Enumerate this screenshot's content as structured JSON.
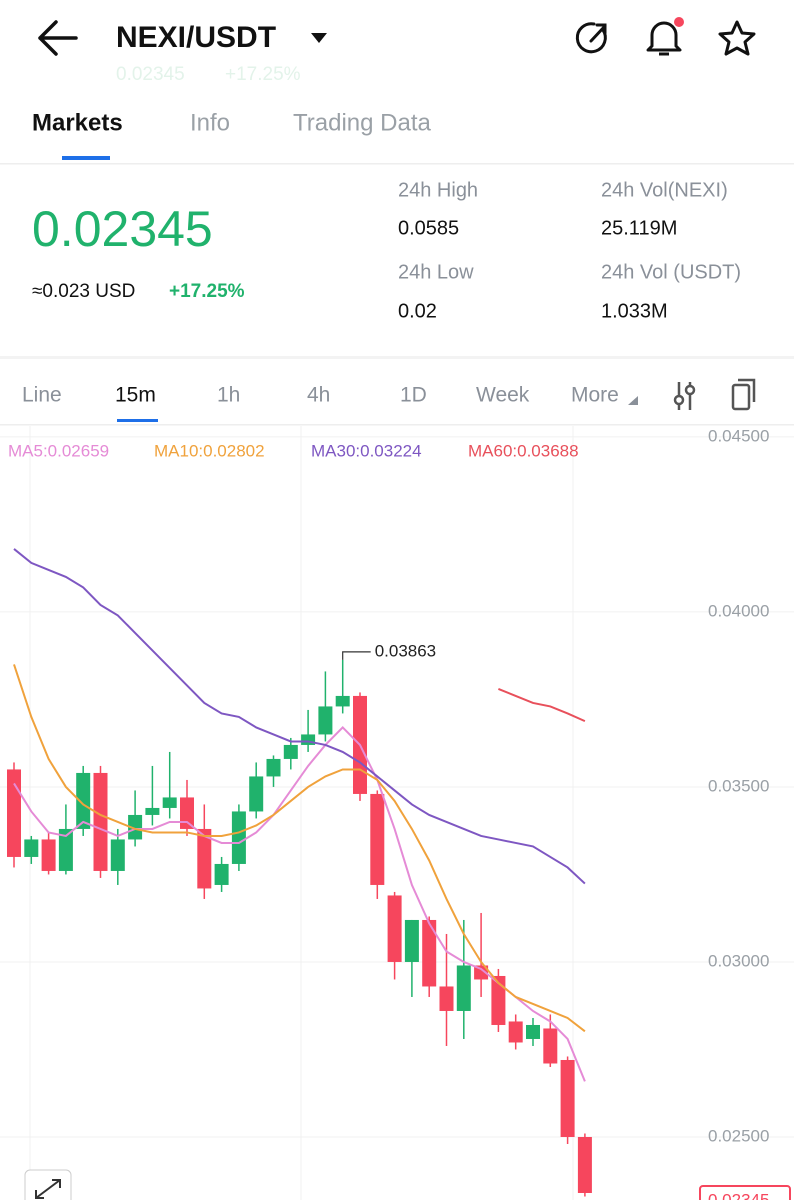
{
  "header": {
    "title": "NEXI/USDT",
    "ghost_price": "0.02345",
    "ghost_change": "+17.25%"
  },
  "tabs": [
    "Markets",
    "Info",
    "Trading Data"
  ],
  "stats": {
    "price": "0.02345",
    "usd": "≈0.023 USD",
    "change": "+17.25%",
    "items": [
      {
        "label": "24h High",
        "value": "0.0585"
      },
      {
        "label": "24h Vol(NEXI)",
        "value": "25.119M"
      },
      {
        "label": "24h Low",
        "value": "0.02"
      },
      {
        "label": "24h Vol (USDT)",
        "value": "1.033M"
      }
    ]
  },
  "timeframes": [
    "Line",
    "15m",
    "1h",
    "4h",
    "1D",
    "Week",
    "More"
  ],
  "chart_data": {
    "type": "candlestick",
    "ylim": [
      0.0232,
      0.04534
    ],
    "yticks": [
      {
        "value": 0.045,
        "label": "0.04500"
      },
      {
        "value": 0.04,
        "label": "0.04000"
      },
      {
        "value": 0.035,
        "label": "0.03500"
      },
      {
        "value": 0.03,
        "label": "0.03000"
      },
      {
        "value": 0.025,
        "label": "0.02500"
      }
    ],
    "open": [
      0.0355,
      0.033,
      0.0335,
      0.0326,
      0.0338,
      0.0354,
      0.0326,
      0.0335,
      0.0342,
      0.0344,
      0.0347,
      0.0338,
      0.0322,
      0.0328,
      0.0343,
      0.0353,
      0.0358,
      0.0362,
      0.0365,
      0.0373,
      0.0376,
      0.0348,
      0.0319,
      0.03,
      0.0312,
      0.0293,
      0.0286,
      0.0299,
      0.0296,
      0.0283,
      0.0278,
      0.0281,
      0.0272,
      0.025
    ],
    "high": [
      0.0357,
      0.0336,
      0.0337,
      0.0345,
      0.0356,
      0.0356,
      0.0338,
      0.0349,
      0.0356,
      0.036,
      0.0352,
      0.0345,
      0.033,
      0.0345,
      0.0357,
      0.0359,
      0.0364,
      0.0372,
      0.0383,
      0.03863,
      0.0377,
      0.0349,
      0.032,
      0.0312,
      0.0313,
      0.0308,
      0.0312,
      0.0314,
      0.0298,
      0.0285,
      0.0284,
      0.0285,
      0.0273,
      0.0251
    ],
    "low": [
      0.0327,
      0.0328,
      0.0325,
      0.0325,
      0.0336,
      0.0324,
      0.0322,
      0.0333,
      0.0339,
      0.0341,
      0.0336,
      0.0318,
      0.032,
      0.0326,
      0.0341,
      0.035,
      0.0355,
      0.036,
      0.0363,
      0.0371,
      0.0346,
      0.0318,
      0.0295,
      0.029,
      0.029,
      0.0276,
      0.0278,
      0.029,
      0.028,
      0.0275,
      0.0276,
      0.027,
      0.0248,
      0.0233
    ],
    "close": [
      0.033,
      0.0335,
      0.0326,
      0.0338,
      0.0354,
      0.0326,
      0.0335,
      0.0342,
      0.0344,
      0.0347,
      0.0338,
      0.0321,
      0.0328,
      0.0343,
      0.0353,
      0.0358,
      0.0362,
      0.0365,
      0.0373,
      0.0376,
      0.0348,
      0.0322,
      0.03,
      0.0312,
      0.0293,
      0.0286,
      0.0299,
      0.0295,
      0.0282,
      0.0277,
      0.0282,
      0.0271,
      0.025,
      0.0234
    ],
    "up_color": "#20b26c",
    "down_color": "#f6465d",
    "series": [
      {
        "name": "MA5:0.02659",
        "color": "#e58bd6",
        "values": [
          0.0351,
          0.0343,
          0.0337,
          0.0336,
          0.034,
          0.0338,
          0.0336,
          0.0338,
          0.0338,
          0.034,
          0.034,
          0.0336,
          0.0334,
          0.0334,
          0.0337,
          0.0342,
          0.0349,
          0.0356,
          0.0362,
          0.0367,
          0.0362,
          0.0352,
          0.0338,
          0.0322,
          0.0311,
          0.0303,
          0.03,
          0.0298,
          0.0294,
          0.029,
          0.0286,
          0.0283,
          0.0278,
          0.02659
        ]
      },
      {
        "name": "MA10:0.02802",
        "color": "#f0a23c",
        "values": [
          0.0385,
          0.037,
          0.0358,
          0.035,
          0.0345,
          0.0342,
          0.034,
          0.0338,
          0.0337,
          0.0337,
          0.0337,
          0.0336,
          0.0336,
          0.0337,
          0.0339,
          0.0342,
          0.0346,
          0.035,
          0.0353,
          0.0355,
          0.0355,
          0.0352,
          0.0346,
          0.0338,
          0.0329,
          0.0318,
          0.0308,
          0.03,
          0.0294,
          0.029,
          0.0288,
          0.0286,
          0.0284,
          0.02802
        ]
      },
      {
        "name": "MA30:0.03224",
        "color": "#7e57c2",
        "values": [
          0.0418,
          0.0414,
          0.0412,
          0.041,
          0.0407,
          0.0402,
          0.0399,
          0.0394,
          0.0389,
          0.0384,
          0.0379,
          0.0374,
          0.0371,
          0.037,
          0.0367,
          0.0365,
          0.0363,
          0.0363,
          0.0362,
          0.036,
          0.0357,
          0.0353,
          0.0349,
          0.0345,
          0.0342,
          0.034,
          0.0338,
          0.0336,
          0.0335,
          0.0334,
          0.0333,
          0.033,
          0.0327,
          0.03224
        ]
      },
      {
        "name": "MA60:0.03688",
        "color": "#e8505b",
        "values": [
          null,
          null,
          null,
          null,
          null,
          null,
          null,
          null,
          null,
          null,
          null,
          null,
          null,
          null,
          null,
          null,
          null,
          null,
          null,
          null,
          null,
          null,
          null,
          null,
          null,
          null,
          null,
          null,
          0.0378,
          0.0376,
          0.0374,
          0.0373,
          0.0371,
          0.03688
        ]
      }
    ],
    "annotation": "0.03863",
    "grid": true
  }
}
